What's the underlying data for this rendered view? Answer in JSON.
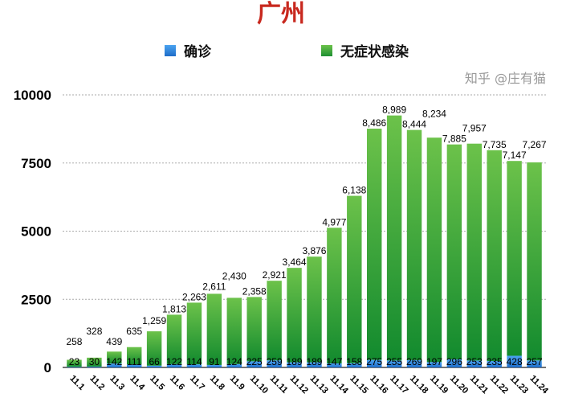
{
  "chart_data": {
    "type": "bar",
    "stacked": true,
    "title": "广州",
    "categories": [
      "11.1",
      "11.2",
      "11.3",
      "11.4",
      "11.5",
      "11.6",
      "11.7",
      "11.8",
      "11.9",
      "11.10",
      "11.11",
      "11.12",
      "11.13",
      "11.14",
      "11.15",
      "11.16",
      "11.17",
      "11.18",
      "11.19",
      "11.20",
      "11.21",
      "11.22",
      "11.23",
      "11.24"
    ],
    "series": [
      {
        "name": "确诊",
        "color": "#2f7fd8",
        "values": [
          23,
          30,
          142,
          111,
          66,
          122,
          114,
          91,
          124,
          225,
          259,
          189,
          189,
          147,
          158,
          275,
          255,
          269,
          197,
          296,
          253,
          235,
          428,
          257
        ]
      },
      {
        "name": "无症状感染",
        "color": "#2e9e3a",
        "values": [
          258,
          328,
          439,
          635,
          1259,
          1813,
          2263,
          2611,
          2430,
          2358,
          2921,
          3464,
          3876,
          4977,
          6138,
          8486,
          8989,
          8444,
          8234,
          7885,
          7957,
          7735,
          7147,
          7267
        ]
      }
    ],
    "ylim": [
      0,
      10000
    ],
    "yticks": [
      "0",
      "2500",
      "5000",
      "7500",
      "10000"
    ],
    "grid": true,
    "legend": "top"
  },
  "watermark": "知乎 @庄有猫"
}
